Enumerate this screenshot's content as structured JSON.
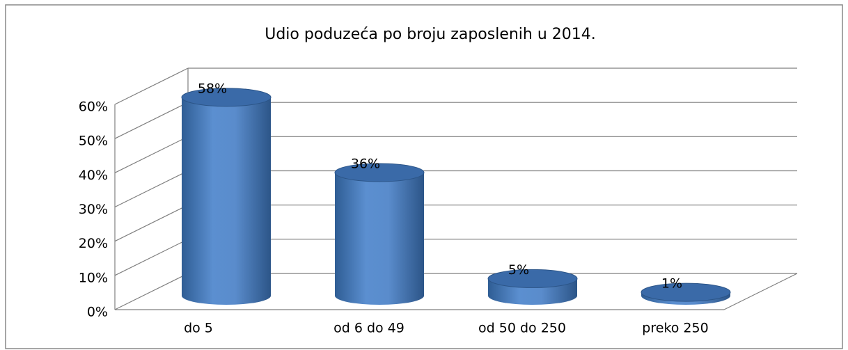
{
  "chart_data": {
    "type": "bar",
    "title": "Udio poduzeća po broju zaposlenih u 2014.",
    "categories": [
      "do 5",
      "od 6 do 49",
      "od 50 do 250",
      "preko 250"
    ],
    "values": [
      58,
      36,
      5,
      1
    ],
    "value_labels": [
      "58%",
      "36%",
      "5%",
      "1%"
    ],
    "color": "#4f81bd",
    "ylim": [
      0,
      60
    ],
    "yticks": [
      {
        "value": 0,
        "label": "0%"
      },
      {
        "value": 10,
        "label": "10%"
      },
      {
        "value": 20,
        "label": "20%"
      },
      {
        "value": 30,
        "label": "30%"
      },
      {
        "value": 40,
        "label": "40%"
      },
      {
        "value": 50,
        "label": "50%"
      },
      {
        "value": 60,
        "label": "60%"
      }
    ],
    "grid": true
  }
}
